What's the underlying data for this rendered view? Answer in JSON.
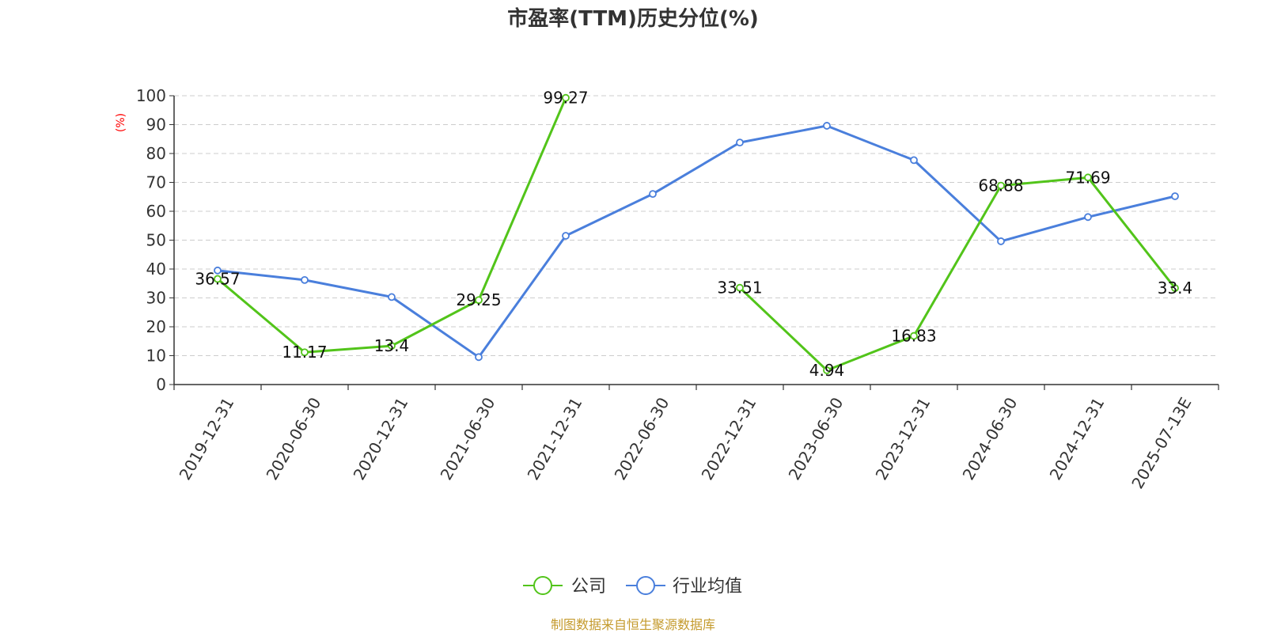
{
  "chart_data": {
    "type": "line",
    "title": "市盈率(TTM)历史分位(%)",
    "ylabel": "(%)",
    "ylim": [
      0,
      100
    ],
    "yticks": [
      0,
      10,
      20,
      30,
      40,
      50,
      60,
      70,
      80,
      90,
      100
    ],
    "grid": true,
    "legend_position": "bottom-center",
    "categories": [
      "2019-12-31",
      "2020-06-30",
      "2020-12-31",
      "2021-06-30",
      "2021-12-31",
      "2022-06-30",
      "2022-12-31",
      "2023-06-30",
      "2023-12-31",
      "2024-06-30",
      "2024-12-31",
      "2025-07-13E"
    ],
    "series": [
      {
        "name": "公司",
        "color": "#52c41a",
        "values": [
          36.57,
          11.17,
          13.4,
          29.25,
          99.27,
          null,
          33.51,
          4.94,
          16.83,
          68.88,
          71.69,
          33.4
        ],
        "labels": [
          "36.57",
          "11.17",
          "13.4",
          "29.25",
          "99.27",
          null,
          "33.51",
          "4.94",
          "16.83",
          "68.88",
          "71.69",
          "33.4"
        ]
      },
      {
        "name": "行业均值",
        "color": "#4a7fdc",
        "values": [
          39.5,
          36.2,
          30.3,
          9.5,
          51.5,
          66.0,
          83.8,
          89.6,
          77.7,
          49.6,
          58.0,
          65.2
        ],
        "labels": []
      }
    ]
  },
  "source_text": "制图数据来自恒生聚源数据库",
  "colors": {
    "axis": "#333333",
    "grid": "#cccccc",
    "ylabel": "#ff0000",
    "source": "#c49a2c"
  }
}
